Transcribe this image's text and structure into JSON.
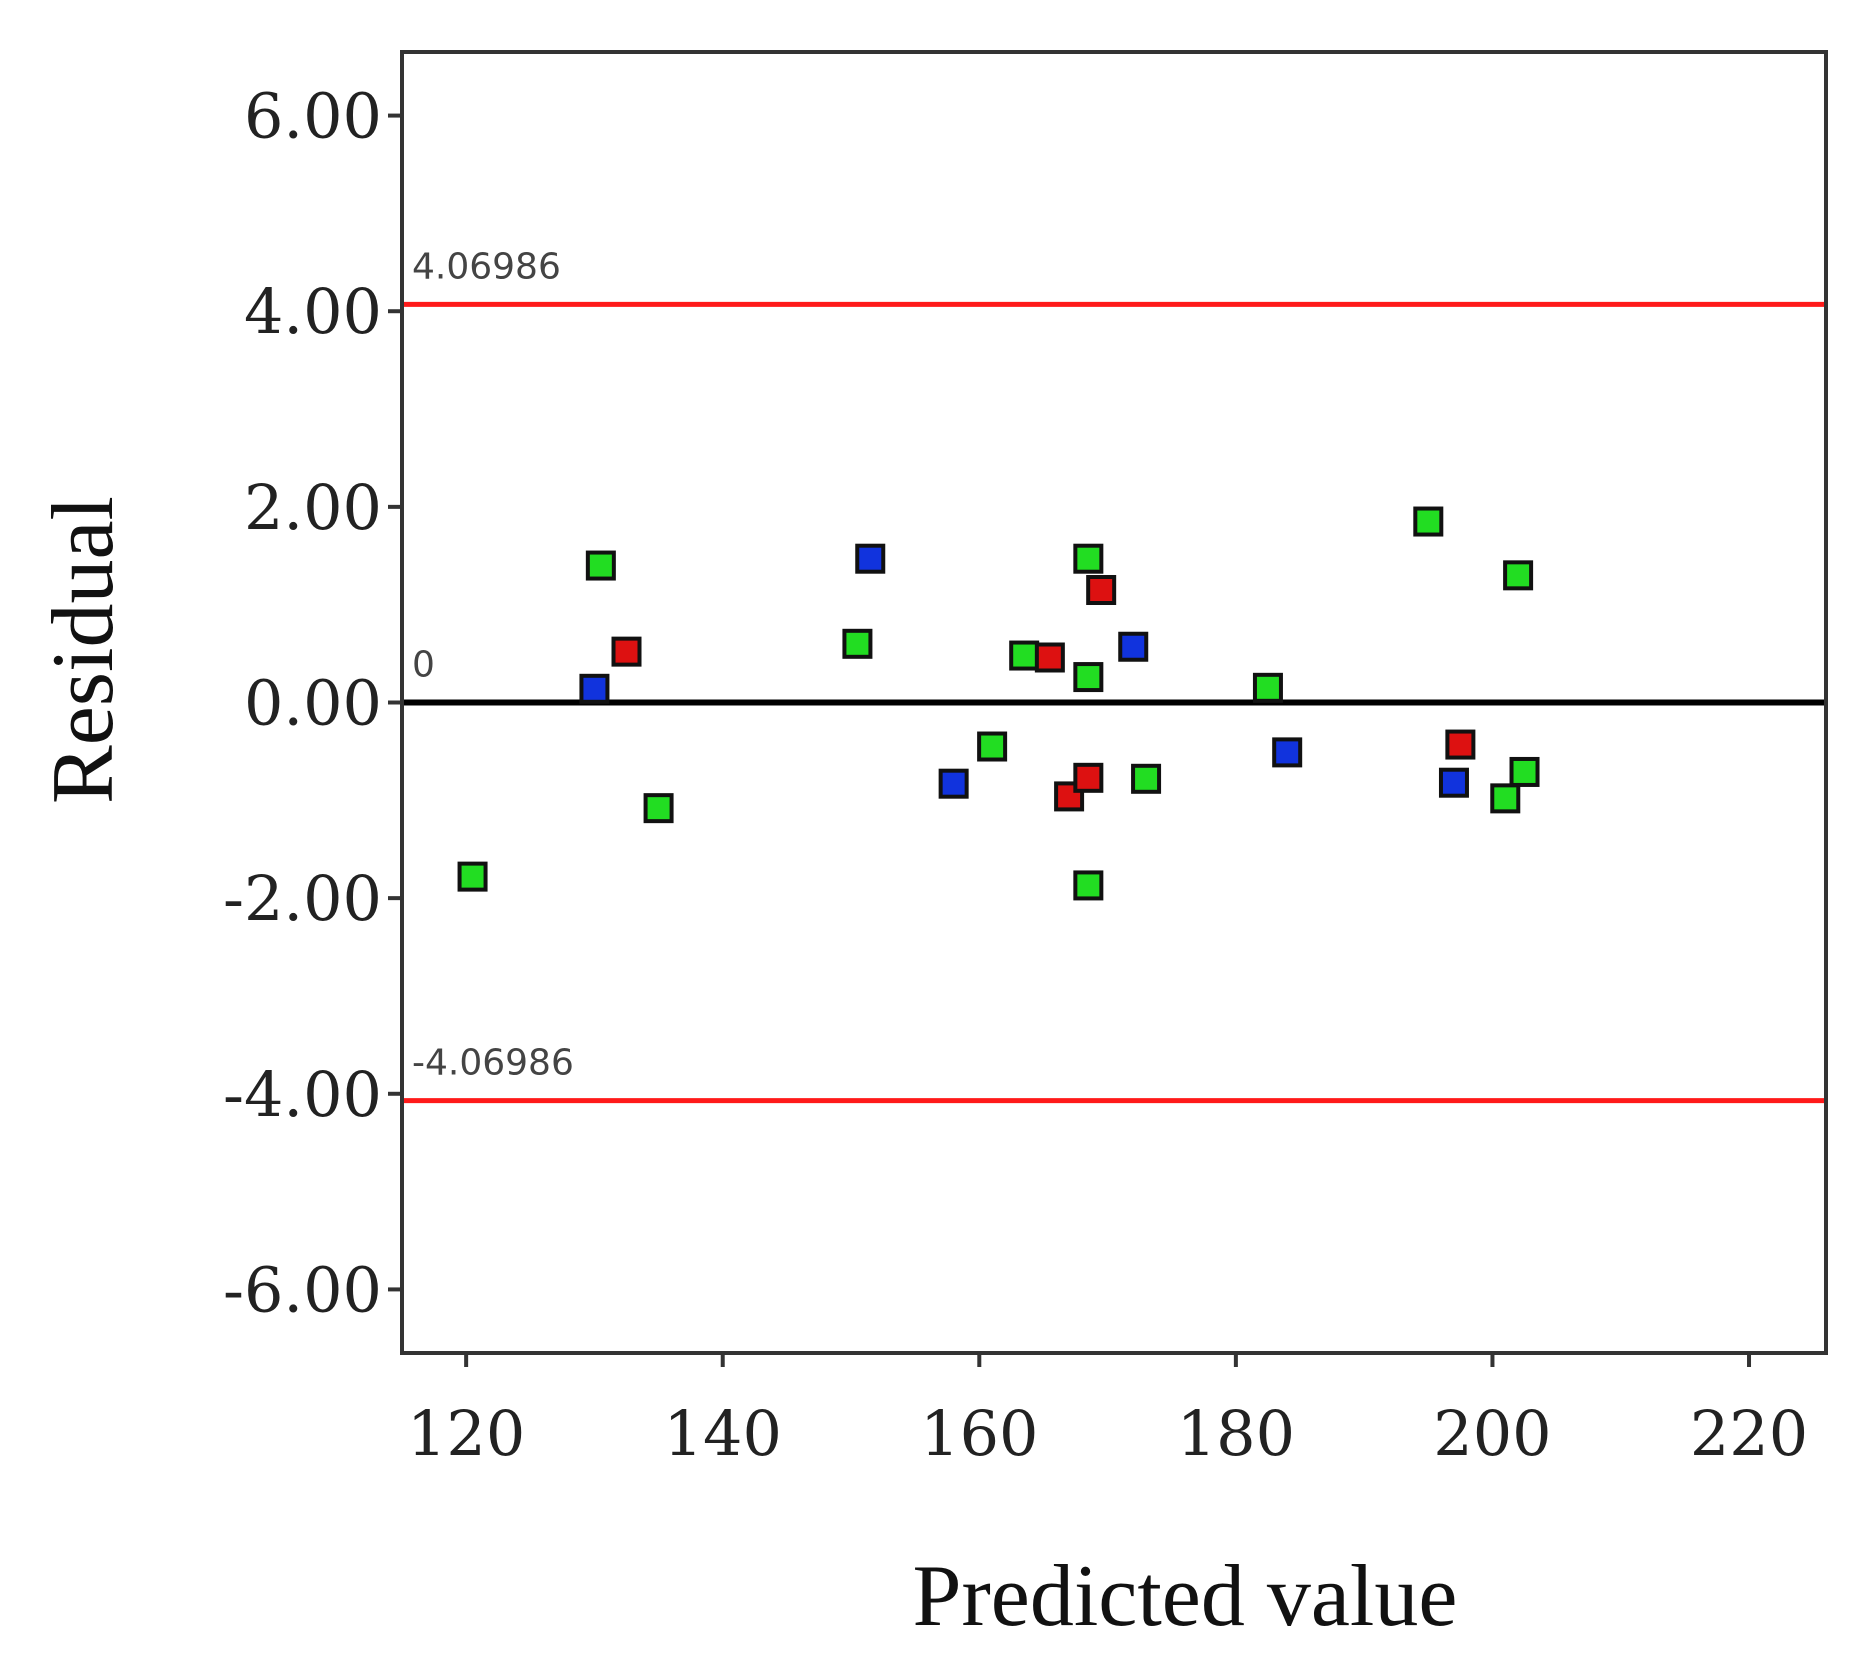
{
  "chart_data": {
    "type": "scatter",
    "title": "",
    "xlabel": "Predicted value",
    "ylabel": "Residual",
    "xlim": [
      115,
      226
    ],
    "ylim": [
      -6.65,
      6.65
    ],
    "xticks": [
      120,
      140,
      160,
      180,
      200,
      220
    ],
    "yticks": [
      6.0,
      4.0,
      2.0,
      0.0,
      -2.0,
      -4.0,
      -6.0
    ],
    "xtick_labels": [
      "120",
      "140",
      "160",
      "180",
      "200",
      "220"
    ],
    "ytick_labels": [
      "6.00",
      "4.00",
      "2.00",
      "0.00",
      "-2.00",
      "-4.00",
      "-6.00"
    ],
    "grid": false,
    "reference_lines": [
      {
        "y": 4.06986,
        "label": "4.06986",
        "color": "#ff1a1a"
      },
      {
        "y": 0,
        "label": "0",
        "color": "#000000"
      },
      {
        "y": -4.06986,
        "label": "-4.06986",
        "color": "#ff1a1a"
      }
    ],
    "marker_colors": {
      "green": "#22dd22",
      "red": "#dd1111",
      "blue": "#1133dd",
      "edge": "#111111"
    },
    "points": [
      {
        "x": 120.5,
        "y": -1.78,
        "color": "green"
      },
      {
        "x": 130.0,
        "y": 0.14,
        "color": "blue"
      },
      {
        "x": 130.5,
        "y": 1.4,
        "color": "green"
      },
      {
        "x": 132.5,
        "y": 0.52,
        "color": "red"
      },
      {
        "x": 135.0,
        "y": -1.08,
        "color": "green"
      },
      {
        "x": 150.5,
        "y": 0.6,
        "color": "green"
      },
      {
        "x": 151.5,
        "y": 1.47,
        "color": "blue"
      },
      {
        "x": 158.0,
        "y": -0.83,
        "color": "blue"
      },
      {
        "x": 161.0,
        "y": -0.45,
        "color": "green"
      },
      {
        "x": 163.5,
        "y": 0.48,
        "color": "green"
      },
      {
        "x": 165.5,
        "y": 0.46,
        "color": "red"
      },
      {
        "x": 167.0,
        "y": -0.96,
        "color": "red"
      },
      {
        "x": 168.5,
        "y": 1.47,
        "color": "green"
      },
      {
        "x": 168.5,
        "y": 0.26,
        "color": "green"
      },
      {
        "x": 168.5,
        "y": -0.77,
        "color": "red"
      },
      {
        "x": 168.5,
        "y": -1.87,
        "color": "green"
      },
      {
        "x": 169.5,
        "y": 1.15,
        "color": "red"
      },
      {
        "x": 172.0,
        "y": 0.57,
        "color": "blue"
      },
      {
        "x": 173.0,
        "y": -0.78,
        "color": "green"
      },
      {
        "x": 182.5,
        "y": 0.15,
        "color": "green"
      },
      {
        "x": 184.0,
        "y": -0.51,
        "color": "blue"
      },
      {
        "x": 195.0,
        "y": 1.85,
        "color": "green"
      },
      {
        "x": 197.0,
        "y": -0.82,
        "color": "blue"
      },
      {
        "x": 197.5,
        "y": -0.43,
        "color": "red"
      },
      {
        "x": 201.0,
        "y": -0.98,
        "color": "green"
      },
      {
        "x": 202.0,
        "y": 1.3,
        "color": "green"
      },
      {
        "x": 202.5,
        "y": -0.71,
        "color": "green"
      }
    ]
  }
}
